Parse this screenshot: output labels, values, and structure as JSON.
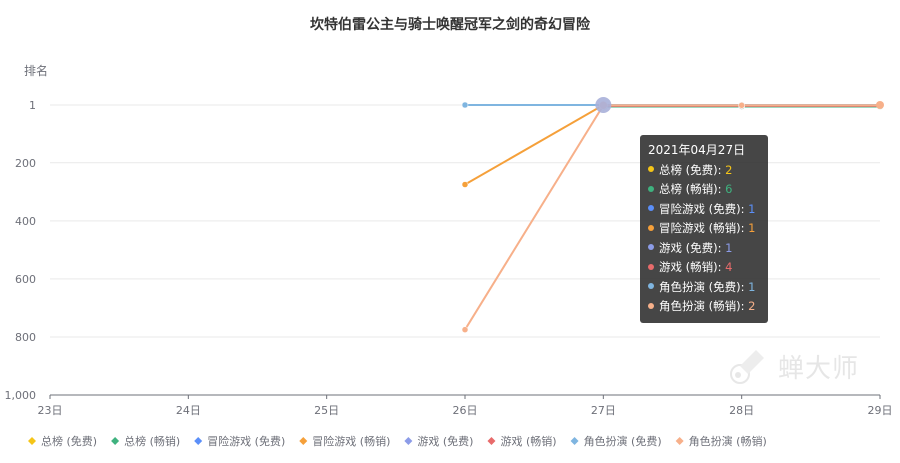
{
  "chart_data": {
    "type": "line",
    "title": "坎特伯雷公主与骑士唤醒冠军之剑的奇幻冒险",
    "ylabel": "排名",
    "xlabel": "",
    "categories": [
      "23日",
      "24日",
      "25日",
      "26日",
      "27日",
      "28日",
      "29日"
    ],
    "y_ticks": [
      "1",
      "200",
      "400",
      "600",
      "800",
      "1,000"
    ],
    "ylim": [
      1,
      1000
    ],
    "y_inverted": true,
    "grid": true,
    "legend_position": "bottom",
    "series": [
      {
        "name": "总榜 (免费)",
        "color": "#f5c518",
        "values": [
          null,
          null,
          null,
          null,
          2,
          2,
          2
        ]
      },
      {
        "name": "总榜 (畅销)",
        "color": "#3fb27f",
        "values": [
          null,
          null,
          null,
          null,
          6,
          6,
          6
        ]
      },
      {
        "name": "冒险游戏 (免费)",
        "color": "#5b8ff9",
        "values": [
          null,
          null,
          null,
          null,
          1,
          1,
          1
        ]
      },
      {
        "name": "冒险游戏 (畅销)",
        "color": "#f5a03a",
        "values": [
          null,
          null,
          null,
          275,
          1,
          1,
          1
        ]
      },
      {
        "name": "游戏 (免费)",
        "color": "#8c9ce8",
        "values": [
          null,
          null,
          null,
          null,
          1,
          1,
          1
        ]
      },
      {
        "name": "游戏 (畅销)",
        "color": "#e86b6b",
        "values": [
          null,
          null,
          null,
          null,
          4,
          4,
          4
        ]
      },
      {
        "name": "角色扮演 (免费)",
        "color": "#7fb5e0",
        "values": [
          null,
          null,
          null,
          1,
          1,
          1,
          1
        ]
      },
      {
        "name": "角色扮演 (畅销)",
        "color": "#f7b08a",
        "values": [
          null,
          null,
          null,
          775,
          2,
          2,
          2
        ]
      }
    ]
  },
  "tooltip": {
    "date": "2021年04月27日",
    "rows": [
      {
        "label": "总榜 (免费): ",
        "value": "2",
        "dot": "#f5c518",
        "value_color": "#f5c518"
      },
      {
        "label": "总榜 (畅销): ",
        "value": "6",
        "dot": "#3fb27f",
        "value_color": "#3fb27f"
      },
      {
        "label": "冒险游戏 (免费): ",
        "value": "1",
        "dot": "#5b8ff9",
        "value_color": "#5b8ff9"
      },
      {
        "label": "冒险游戏 (畅销): ",
        "value": "1",
        "dot": "#f5a03a",
        "value_color": "#f5a03a"
      },
      {
        "label": "游戏 (免费): ",
        "value": "1",
        "dot": "#8c9ce8",
        "value_color": "#8c9ce8"
      },
      {
        "label": "游戏 (畅销): ",
        "value": "4",
        "dot": "#e86b6b",
        "value_color": "#e86b6b"
      },
      {
        "label": "角色扮演 (免费): ",
        "value": "1",
        "dot": "#7fb5e0",
        "value_color": "#7fb5e0"
      },
      {
        "label": "角色扮演 (畅销): ",
        "value": "2",
        "dot": "#f7b08a",
        "value_color": "#f7b08a"
      }
    ]
  },
  "watermark": {
    "text": "蝉大师",
    "icon": "cicada-logo-icon"
  }
}
